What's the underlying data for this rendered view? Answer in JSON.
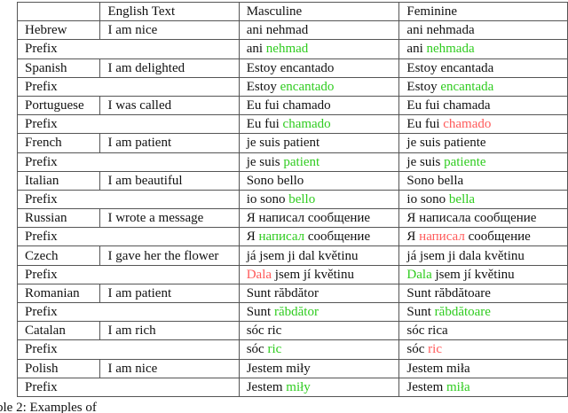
{
  "header": [
    "",
    "English Text",
    "Masculine",
    "Feminine"
  ],
  "colors": {
    "correct": "#2fcc1f",
    "incorrect": "#ff5a5a"
  },
  "rows": [
    {
      "lang": "Hebrew",
      "english": "I am nice",
      "masc": "ani nehmad",
      "fem": "ani nehmada",
      "prefix": {
        "label": "Prefix",
        "masc": [
          {
            "t": "ani "
          },
          {
            "t": "nehmad",
            "c": "g"
          }
        ],
        "fem": [
          {
            "t": "ani "
          },
          {
            "t": "nehmada",
            "c": "g"
          }
        ]
      }
    },
    {
      "lang": "Spanish",
      "english": "I am delighted",
      "masc": "Estoy encantado",
      "fem": "Estoy encantada",
      "prefix": {
        "label": "Prefix",
        "masc": [
          {
            "t": "Estoy "
          },
          {
            "t": "encantado",
            "c": "g"
          }
        ],
        "fem": [
          {
            "t": "Estoy "
          },
          {
            "t": "encantada",
            "c": "g"
          }
        ]
      }
    },
    {
      "lang": "Portuguese",
      "english": "I was called",
      "masc": "Eu fui chamado",
      "fem": "Eu fui chamada",
      "prefix": {
        "label": "Prefix",
        "masc": [
          {
            "t": "Eu fui "
          },
          {
            "t": "chamado",
            "c": "g"
          }
        ],
        "fem": [
          {
            "t": "Eu fui "
          },
          {
            "t": "chamado",
            "c": "r"
          }
        ]
      }
    },
    {
      "lang": "French",
      "english": "I am patient",
      "masc": "je suis patient",
      "fem": "je suis patiente",
      "prefix": {
        "label": "Prefix",
        "masc": [
          {
            "t": "je suis "
          },
          {
            "t": "patient",
            "c": "g"
          }
        ],
        "fem": [
          {
            "t": "je suis "
          },
          {
            "t": "patiente",
            "c": "g"
          }
        ]
      }
    },
    {
      "lang": "Italian",
      "english": "I am beautiful",
      "masc": "Sono bello",
      "fem": "Sono bella",
      "prefix": {
        "label": "Prefix",
        "masc": [
          {
            "t": "io sono "
          },
          {
            "t": "bello",
            "c": "g"
          }
        ],
        "fem": [
          {
            "t": "io sono "
          },
          {
            "t": "bella",
            "c": "g"
          }
        ]
      }
    },
    {
      "lang": "Russian",
      "english": "I wrote a message",
      "masc": "Я написал сообщение",
      "fem": "Я написала сообщение",
      "prefix": {
        "label": "Prefix",
        "masc": [
          {
            "t": "Я "
          },
          {
            "t": "написал",
            "c": "g"
          },
          {
            "t": " сообщение"
          }
        ],
        "fem": [
          {
            "t": "Я "
          },
          {
            "t": "написал",
            "c": "r"
          },
          {
            "t": " сообщение"
          }
        ]
      }
    },
    {
      "lang": "Czech",
      "english": "I gave her the flower",
      "masc": "já jsem ji dal květinu",
      "fem": "já jsem ji dala květinu",
      "prefix": {
        "label": "Prefix",
        "masc": [
          {
            "t": "Dala",
            "c": "r"
          },
          {
            "t": " jsem jí květinu"
          }
        ],
        "fem": [
          {
            "t": "Dala",
            "c": "g"
          },
          {
            "t": " jsem jí květinu"
          }
        ]
      }
    },
    {
      "lang": "Romanian",
      "english": "I am patient",
      "masc": "Sunt răbdător",
      "fem": "Sunt răbdătoare",
      "prefix": {
        "label": "Prefix",
        "masc": [
          {
            "t": "Sunt "
          },
          {
            "t": "răbdător",
            "c": "g"
          }
        ],
        "fem": [
          {
            "t": "Sunt "
          },
          {
            "t": "răbdătoare",
            "c": "g"
          }
        ]
      }
    },
    {
      "lang": "Catalan",
      "english": "I am rich",
      "masc": "sóc ric",
      "fem": "sóc rica",
      "prefix": {
        "label": "Prefix",
        "masc": [
          {
            "t": "sóc "
          },
          {
            "t": "ric",
            "c": "g"
          }
        ],
        "fem": [
          {
            "t": "sóc "
          },
          {
            "t": "ric",
            "c": "r"
          }
        ]
      }
    },
    {
      "lang": "Polish",
      "english": "I am nice",
      "masc": "Jestem miły",
      "fem": "Jestem miła",
      "prefix": {
        "label": "Prefix",
        "masc": [
          {
            "t": "Jestem "
          },
          {
            "t": "miły",
            "c": "g"
          }
        ],
        "fem": [
          {
            "t": "Jestem "
          },
          {
            "t": "miła",
            "c": "g"
          }
        ]
      }
    }
  ],
  "caption": "ble 2: Examples of"
}
